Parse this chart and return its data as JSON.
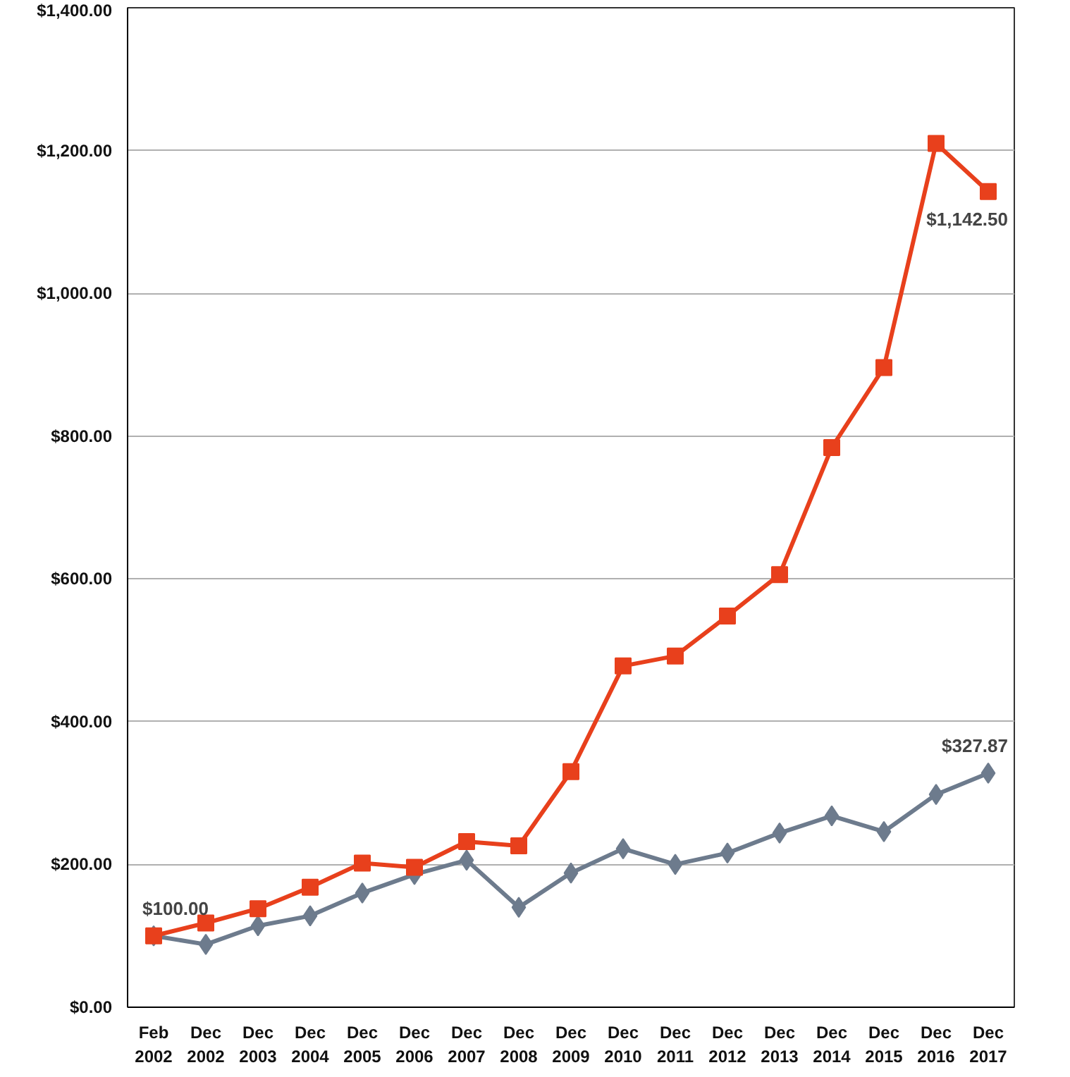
{
  "chart_data": {
    "type": "line",
    "categories": [
      "Feb 2002",
      "Dec 2002",
      "Dec 2003",
      "Dec 2004",
      "Dec 2005",
      "Dec 2006",
      "Dec 2007",
      "Dec 2008",
      "Dec 2009",
      "Dec 2010",
      "Dec 2011",
      "Dec 2012",
      "Dec 2013",
      "Dec 2014",
      "Dec 2015",
      "Dec 2016",
      "Dec 2017"
    ],
    "series": [
      {
        "color": "#e8401c",
        "marker": "square",
        "values": [
          100,
          118,
          138,
          168,
          202,
          196,
          232,
          226,
          330,
          478,
          492,
          548,
          606,
          784,
          896,
          1210,
          1142.5
        ]
      },
      {
        "color": "#6d7b8d",
        "marker": "diamond",
        "values": [
          100,
          88,
          114,
          128,
          160,
          186,
          206,
          140,
          188,
          222,
          200,
          216,
          244,
          268,
          246,
          298,
          327.87
        ]
      }
    ],
    "ylim": [
      0,
      1400
    ],
    "yticks": [
      {
        "value": 0,
        "label": "$0.00"
      },
      {
        "value": 200,
        "label": "$200.00"
      },
      {
        "value": 400,
        "label": "$400.00"
      },
      {
        "value": 600,
        "label": "$600.00"
      },
      {
        "value": 800,
        "label": "$800.00"
      },
      {
        "value": 1000,
        "label": "$1,000.00"
      },
      {
        "value": 1200,
        "label": "$1,200.00"
      },
      {
        "value": 1400,
        "label": "$1,400.00"
      }
    ],
    "grid": "y",
    "annotations": [
      {
        "text": "$100.00",
        "x": "Feb 2002",
        "y": 100
      },
      {
        "text": "$1,142.50",
        "x": "Dec 2017",
        "y": 1142.5
      },
      {
        "text": "$327.87",
        "x": "Dec 2017",
        "y": 327.87
      }
    ]
  }
}
